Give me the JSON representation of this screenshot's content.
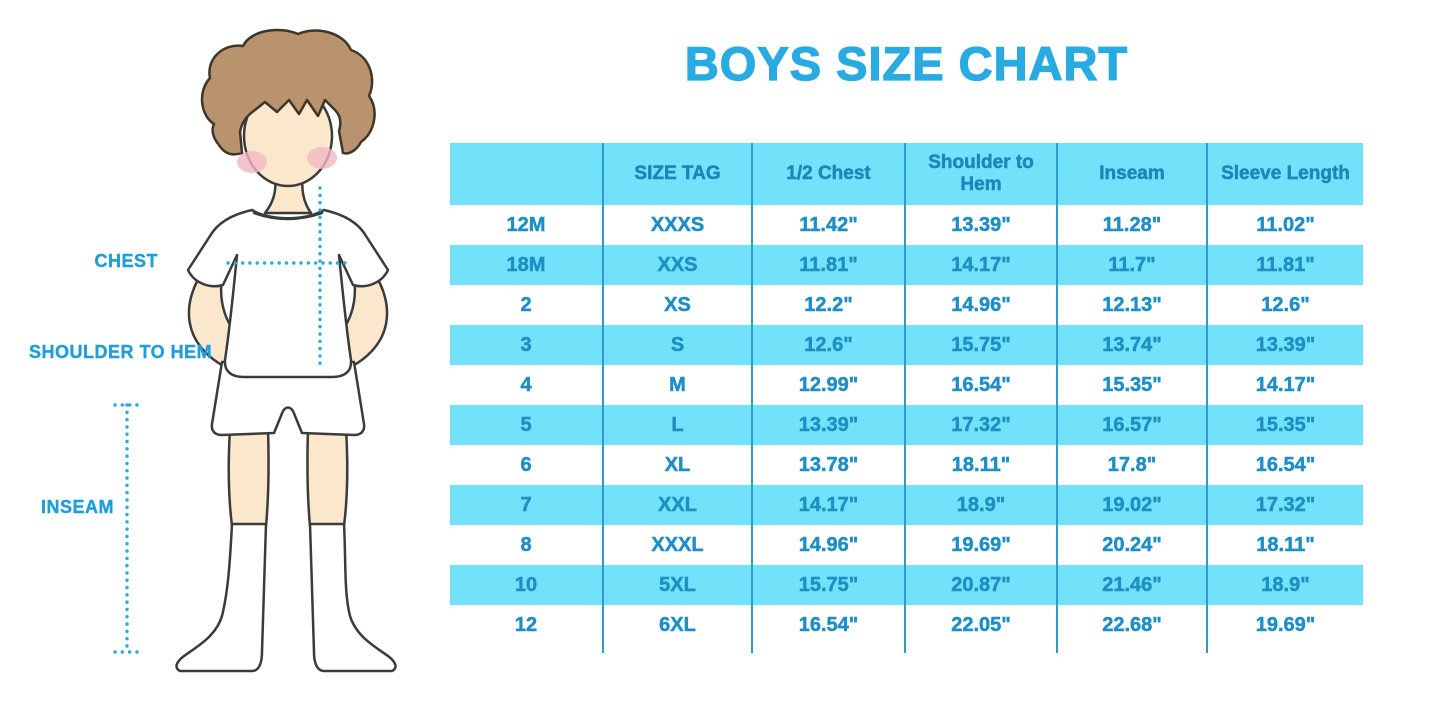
{
  "chart_data": {
    "type": "table",
    "title": "BOYS SIZE CHART",
    "columns": [
      "",
      "SIZE TAG",
      "1/2 Chest",
      "Shoulder to Hem",
      "Inseam",
      "Sleeve Length"
    ],
    "rows": [
      [
        "12M",
        "XXXS",
        "11.42\"",
        "13.39\"",
        "11.28\"",
        "11.02\""
      ],
      [
        "18M",
        "XXS",
        "11.81\"",
        "14.17\"",
        "11.7\"",
        "11.81\""
      ],
      [
        "2",
        "XS",
        "12.2\"",
        "14.96\"",
        "12.13\"",
        "12.6\""
      ],
      [
        "3",
        "S",
        "12.6\"",
        "15.75\"",
        "13.74\"",
        "13.39\""
      ],
      [
        "4",
        "M",
        "12.99\"",
        "16.54\"",
        "15.35\"",
        "14.17\""
      ],
      [
        "5",
        "L",
        "13.39\"",
        "17.32\"",
        "16.57\"",
        "15.35\""
      ],
      [
        "6",
        "XL",
        "13.78\"",
        "18.11\"",
        "17.8\"",
        "16.54\""
      ],
      [
        "7",
        "XXL",
        "14.17\"",
        "18.9\"",
        "19.02\"",
        "17.32\""
      ],
      [
        "8",
        "XXXL",
        "14.96\"",
        "19.69\"",
        "20.24\"",
        "18.11\""
      ],
      [
        "10",
        "5XL",
        "15.75\"",
        "20.87\"",
        "21.46\"",
        "18.9\""
      ],
      [
        "12",
        "6XL",
        "16.54\"",
        "22.05\"",
        "22.68\"",
        "19.69\""
      ]
    ],
    "layout": {
      "striped": true,
      "stripe_rows": "even",
      "grid": "vertical-separators-only"
    }
  },
  "figure": {
    "labels": {
      "chest": "CHEST",
      "shoulder_to_hem": "SHOULDER TO HEM",
      "inseam": "INSEAM"
    }
  },
  "colors": {
    "title": "#29abe2",
    "header_text": "#1b86ba",
    "cell_text": "#1e8fc4",
    "stripe": "#71e2fa",
    "separator": "#2b9ccb",
    "label": "#1f9ed9",
    "dotted_line": "#29abe2",
    "skin": "#fbe8cc",
    "hair": "#b8936e",
    "blush": "#f2b7c3"
  }
}
